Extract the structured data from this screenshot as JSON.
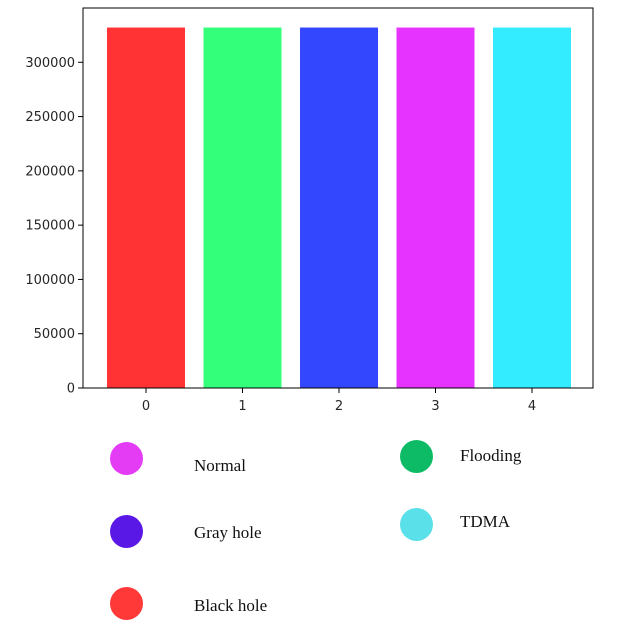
{
  "chart_data": {
    "type": "bar",
    "categories": [
      "0",
      "1",
      "2",
      "3",
      "4"
    ],
    "values": [
      332000,
      332000,
      332000,
      332000,
      332000
    ],
    "bar_colors": [
      "#ff3333",
      "#33ff7a",
      "#3347ff",
      "#e733ff",
      "#33ecff"
    ],
    "ylim": [
      0,
      350000
    ],
    "yticks": [
      0,
      50000,
      100000,
      150000,
      200000,
      250000,
      300000
    ],
    "ytick_labels": [
      "0",
      "50000",
      "100000",
      "150000",
      "200000",
      "250000",
      "300000"
    ],
    "xtick_labels": [
      "0",
      "1",
      "2",
      "3",
      "4"
    ],
    "title": "",
    "xlabel": "",
    "ylabel": "",
    "grid": false
  },
  "legend": [
    {
      "label": "Normal",
      "color": "#e33cf4"
    },
    {
      "label": "Gray hole",
      "color": "#5a18e6"
    },
    {
      "label": "Black hole",
      "color": "#ff3838"
    },
    {
      "label": "Flooding",
      "color": "#0dbb66"
    },
    {
      "label": "TDMA",
      "color": "#59e0e8"
    }
  ]
}
